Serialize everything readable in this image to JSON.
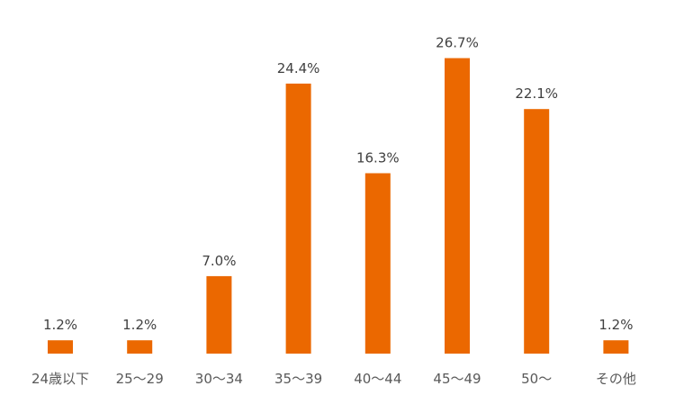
{
  "chart_data": {
    "type": "bar",
    "categories": [
      "24歳以下",
      "25～29",
      "30～34",
      "35～39",
      "40～44",
      "45～49",
      "50～",
      "その他"
    ],
    "values": [
      1.2,
      1.2,
      7.0,
      24.4,
      16.3,
      26.7,
      22.1,
      1.2
    ],
    "value_labels": [
      "1.2%",
      "1.2%",
      "7.0%",
      "24.4%",
      "16.3%",
      "26.7%",
      "22.1%",
      "1.2%"
    ],
    "unit": "%",
    "ylim": [
      0,
      30
    ],
    "grid": false,
    "colors": {
      "bar": "#EB6800",
      "value_text": "#404040",
      "category_text": "#595959"
    }
  }
}
